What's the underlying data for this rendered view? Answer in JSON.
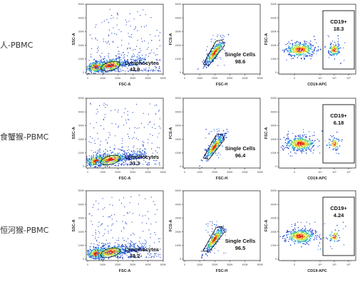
{
  "rows": [
    {
      "label": "人-PBMC",
      "panels": [
        {
          "x_label": "FSC-A",
          "y_label": "SSC-A",
          "gate_name": "Lymphocytes",
          "gate_value": "43.9"
        },
        {
          "x_label": "FSC-H",
          "y_label": "FCS-A",
          "gate_name": "Single Cells",
          "gate_value": "98.6"
        },
        {
          "x_label": "CD19-APC",
          "y_label": "FSC-A",
          "gate_name": "CD19+",
          "gate_value": "18.3"
        }
      ]
    },
    {
      "label": "食蟹猴-PBMC",
      "panels": [
        {
          "x_label": "FSC-A",
          "y_label": "SSC-A",
          "gate_name": "Lymphocytes",
          "gate_value": "33.3"
        },
        {
          "x_label": "FSC-H",
          "y_label": "FCS-A",
          "gate_name": "Single Cells",
          "gate_value": "96.4"
        },
        {
          "x_label": "CD19-APC",
          "y_label": "FSC-A",
          "gate_name": "CD19+",
          "gate_value": "6.18"
        }
      ]
    },
    {
      "label": "恒河猴-PBMC",
      "panels": [
        {
          "x_label": "FSC-A",
          "y_label": "SSC-A",
          "gate_name": "Lymphocytes",
          "gate_value": "48.2"
        },
        {
          "x_label": "FSC-H",
          "y_label": "FCS-A",
          "gate_name": "Single Cells",
          "gate_value": "96.5"
        },
        {
          "x_label": "CD19-APC",
          "y_label": "FSC-A",
          "gate_name": "CD19+",
          "gate_value": "4.24"
        }
      ]
    }
  ],
  "linear_ticks": [
    "0",
    "100K",
    "200K",
    "300K",
    "400K",
    "500K"
  ],
  "log_ticks": [
    "0",
    "10⁴",
    "10⁵",
    "10⁶"
  ],
  "density_colors": [
    "#1a3cc8",
    "#2a8cf0",
    "#38c8a0",
    "#a8e040",
    "#f0e030",
    "#f08020",
    "#e02010"
  ]
}
